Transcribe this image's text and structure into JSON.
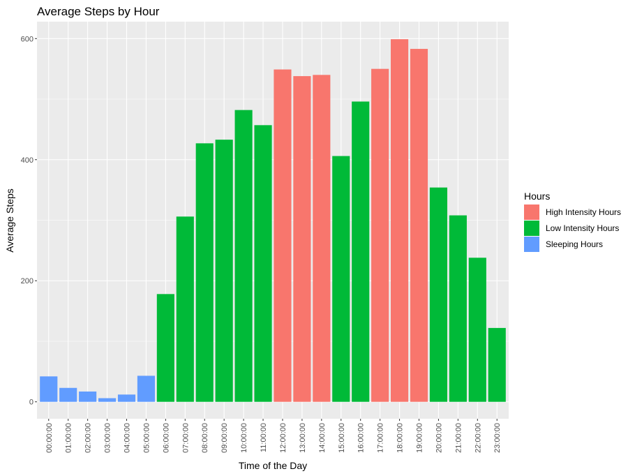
{
  "chart_data": {
    "type": "bar",
    "title": "Average Steps by Hour",
    "xlabel": "Time of the Day",
    "ylabel": "Average Steps",
    "ylim": [
      -28,
      628
    ],
    "yticks": [
      0,
      200,
      400,
      600
    ],
    "grid": true,
    "legend": {
      "title": "Hours",
      "placement": "right",
      "entries": [
        {
          "name": "High Intensity Hours",
          "color": "#F8766D"
        },
        {
          "name": "Low Intensity Hours",
          "color": "#00BA38"
        },
        {
          "name": "Sleeping Hours",
          "color": "#619CFF"
        }
      ]
    },
    "categories": [
      "00:00:00",
      "01:00:00",
      "02:00:00",
      "03:00:00",
      "04:00:00",
      "05:00:00",
      "06:00:00",
      "07:00:00",
      "08:00:00",
      "09:00:00",
      "10:00:00",
      "11:00:00",
      "12:00:00",
      "13:00:00",
      "14:00:00",
      "15:00:00",
      "16:00:00",
      "17:00:00",
      "18:00:00",
      "19:00:00",
      "20:00:00",
      "21:00:00",
      "22:00:00",
      "23:00:00"
    ],
    "values": [
      42,
      23,
      17,
      6,
      12,
      43,
      178,
      306,
      427,
      433,
      482,
      457,
      549,
      538,
      540,
      406,
      496,
      550,
      599,
      583,
      354,
      308,
      238,
      122
    ],
    "groups": [
      "Sleeping Hours",
      "Sleeping Hours",
      "Sleeping Hours",
      "Sleeping Hours",
      "Sleeping Hours",
      "Sleeping Hours",
      "Low Intensity Hours",
      "Low Intensity Hours",
      "Low Intensity Hours",
      "Low Intensity Hours",
      "Low Intensity Hours",
      "Low Intensity Hours",
      "High Intensity Hours",
      "High Intensity Hours",
      "High Intensity Hours",
      "Low Intensity Hours",
      "Low Intensity Hours",
      "High Intensity Hours",
      "High Intensity Hours",
      "High Intensity Hours",
      "Low Intensity Hours",
      "Low Intensity Hours",
      "Low Intensity Hours",
      "Low Intensity Hours"
    ]
  }
}
